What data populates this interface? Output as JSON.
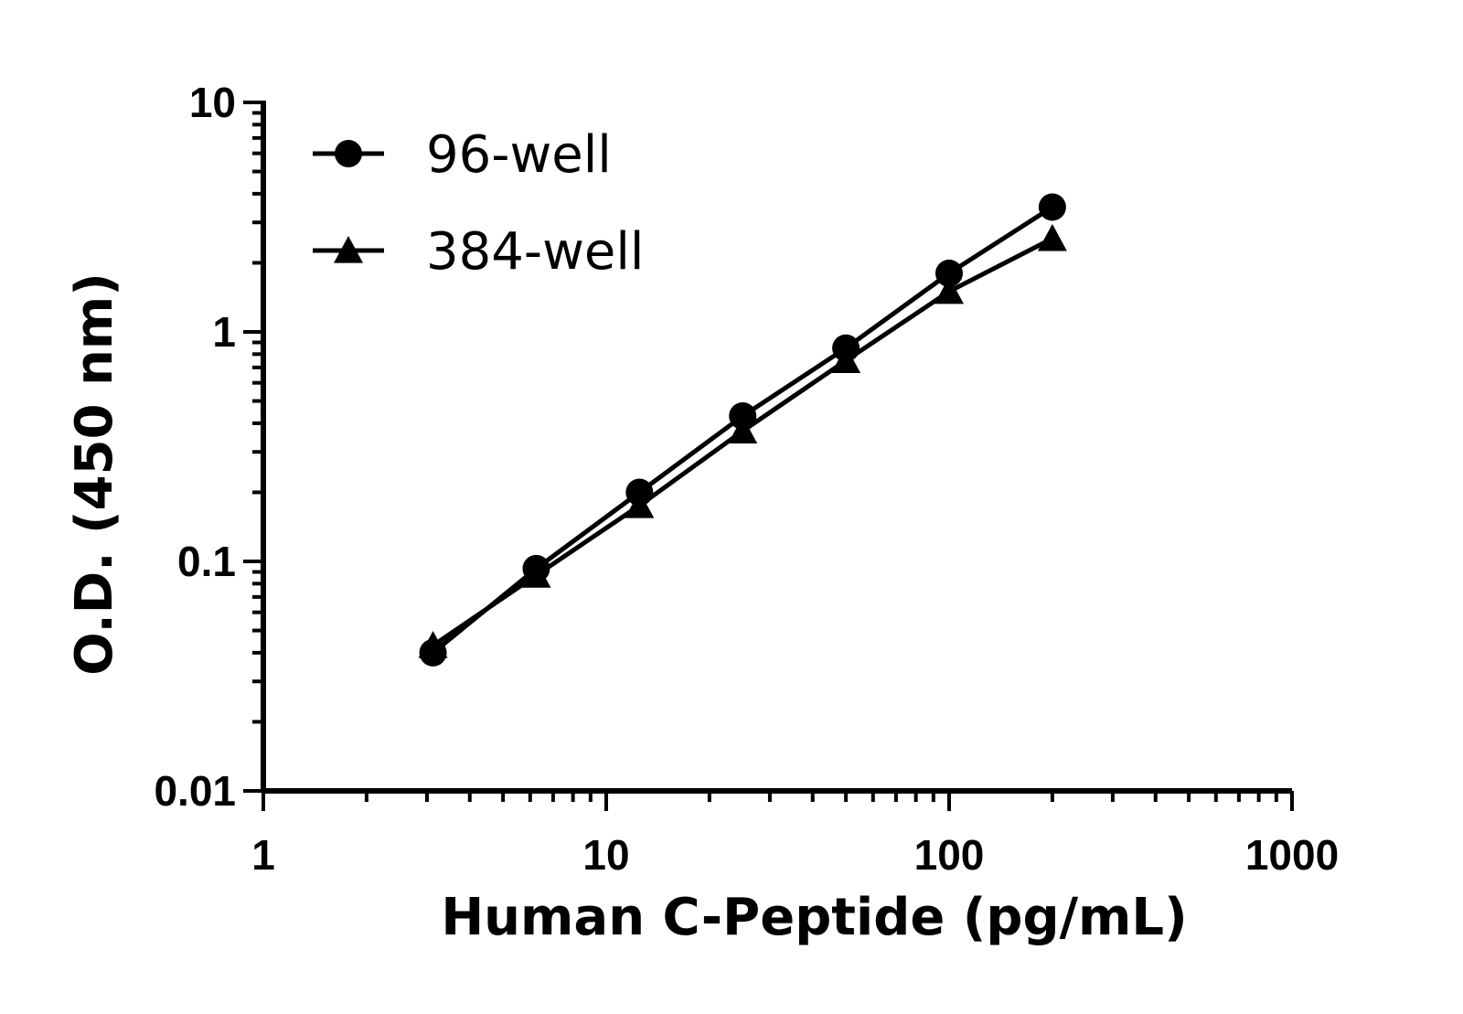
{
  "chart_data": {
    "type": "line",
    "xscale": "log",
    "yscale": "log",
    "xlabel": "Human C-Peptide (pg/mL)",
    "ylabel": "O.D. (450 nm)",
    "xlim": [
      1,
      1000
    ],
    "ylim": [
      0.01,
      10
    ],
    "xticks": [
      "1",
      "10",
      "100",
      "1000"
    ],
    "yticks": [
      "0.01",
      "0.1",
      "1",
      "10"
    ],
    "x": [
      3.125,
      6.25,
      12.5,
      25,
      50,
      100,
      200
    ],
    "series": [
      {
        "name": "96-well",
        "marker": "circle",
        "values": [
          0.04,
          0.093,
          0.2,
          0.43,
          0.85,
          1.8,
          3.5
        ]
      },
      {
        "name": "384-well",
        "marker": "triangle",
        "values": [
          0.043,
          0.087,
          0.175,
          0.37,
          0.75,
          1.5,
          2.55
        ]
      }
    ],
    "legend_position": "top-left",
    "grid": false,
    "color": "#000000"
  }
}
